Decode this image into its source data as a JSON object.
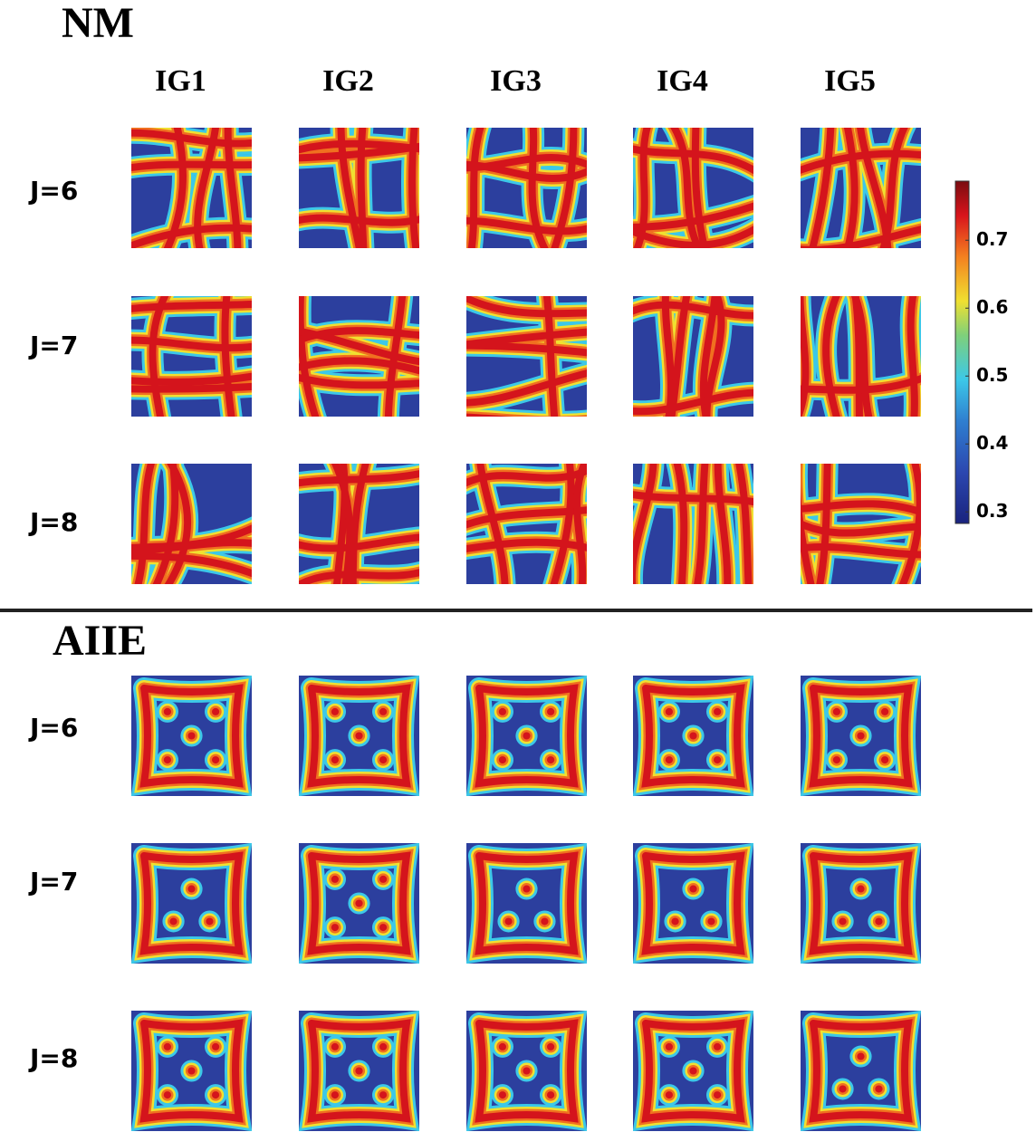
{
  "nm": {
    "title": "NM",
    "columns": [
      "IG1",
      "IG2",
      "IG3",
      "IG4",
      "IG5"
    ],
    "rows": [
      "J=6",
      "J=7",
      "J=8"
    ]
  },
  "aiie": {
    "title": "AIIE",
    "rows": [
      "J=6",
      "J=7",
      "J=8"
    ]
  },
  "colorbar": {
    "lim": [
      0.283,
      0.787
    ],
    "ticks": [
      0.3,
      0.4,
      0.5,
      0.6,
      0.7
    ]
  }
}
